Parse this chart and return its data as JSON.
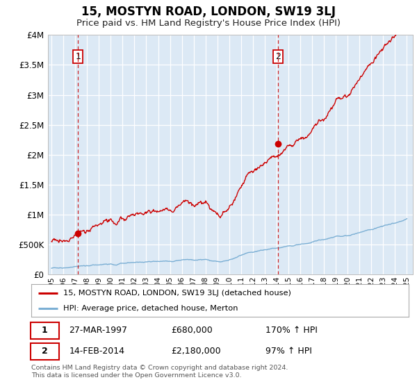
{
  "title": "15, MOSTYN ROAD, LONDON, SW19 3LJ",
  "subtitle": "Price paid vs. HM Land Registry's House Price Index (HPI)",
  "title_fontsize": 12,
  "subtitle_fontsize": 9.5,
  "background_color": "#dce9f5",
  "fig_bg_color": "#ffffff",
  "sale1_x": 1997.23,
  "sale1_y": 680000,
  "sale2_x": 2014.12,
  "sale2_y": 2180000,
  "red_color": "#cc0000",
  "blue_color": "#7bafd4",
  "ylim": [
    0,
    4000000
  ],
  "xlim": [
    1994.7,
    2025.5
  ],
  "yticks": [
    0,
    500000,
    1000000,
    1500000,
    2000000,
    2500000,
    3000000,
    3500000,
    4000000
  ],
  "legend1": "15, MOSTYN ROAD, LONDON, SW19 3LJ (detached house)",
  "legend2": "HPI: Average price, detached house, Merton",
  "annotation1_date": "27-MAR-1997",
  "annotation1_price": "£680,000",
  "annotation1_hpi": "170% ↑ HPI",
  "annotation2_date": "14-FEB-2014",
  "annotation2_price": "£2,180,000",
  "annotation2_hpi": "97% ↑ HPI",
  "footnote": "Contains HM Land Registry data © Crown copyright and database right 2024.\nThis data is licensed under the Open Government Licence v3.0."
}
